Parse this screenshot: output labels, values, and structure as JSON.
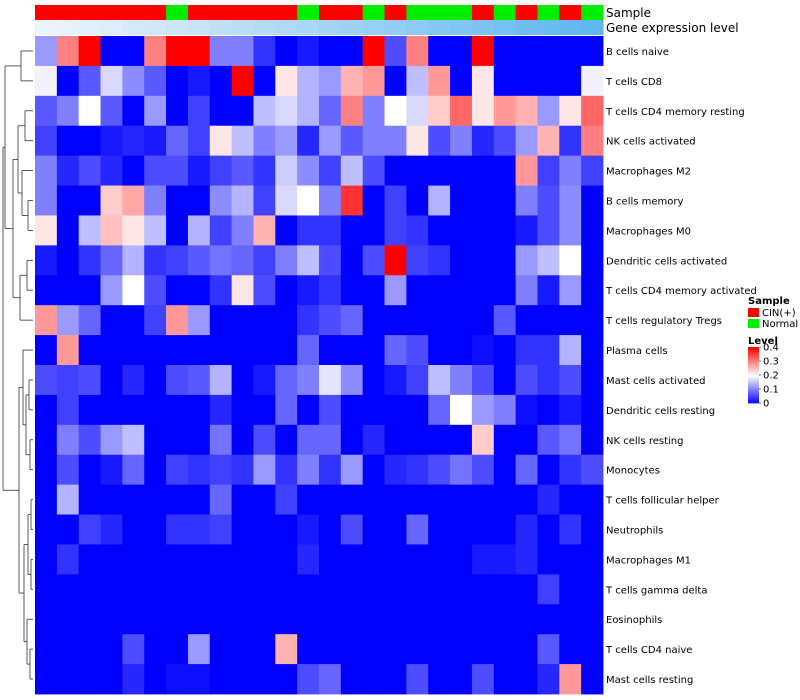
{
  "chart_data": {
    "type": "heatmap",
    "title": "",
    "annotation_tracks": [
      {
        "name": "Sample",
        "label": "Sample"
      },
      {
        "name": "Gene expression level",
        "label": "Gene expression level"
      }
    ],
    "sample_groups": [
      "C",
      "C",
      "C",
      "C",
      "C",
      "C",
      "N",
      "C",
      "C",
      "C",
      "C",
      "C",
      "N",
      "C",
      "C",
      "N",
      "C",
      "N",
      "N",
      "N",
      "C",
      "N",
      "C",
      "N",
      "C",
      "N"
    ],
    "group_colors": {
      "C": "#ff0000",
      "N": "#00ee00"
    },
    "expression_gradient": [
      "#eef4fb",
      "#5fb7f0"
    ],
    "rows": [
      "B cells naive",
      "T cells CD8",
      "T cells CD4 memory resting",
      "NK cells activated",
      "Macrophages M2",
      "B cells memory",
      "Macrophages M0",
      "Dendritic cells activated",
      "T cells CD4 memory activated",
      "T cells regulatory  Tregs",
      "Plasma cells",
      "Mast cells activated",
      "Dendritic cells resting",
      "NK cells resting",
      "Monocytes",
      "T cells follicular helper",
      "Neutrophils",
      "Macrophages M1",
      "T cells gamma delta",
      "Eosinophils",
      "T cells CD4 naive",
      "Mast cells resting"
    ],
    "values": [
      [
        0.12,
        0.3,
        0.4,
        0.0,
        0.0,
        0.3,
        0.4,
        0.4,
        0.1,
        0.1,
        0.04,
        0.0,
        0.02,
        0.0,
        0.0,
        0.4,
        0.06,
        0.3,
        0.0,
        0.0,
        0.4,
        0.0,
        0.0,
        0.0,
        0.0,
        0.0
      ],
      [
        0.19,
        0.0,
        0.07,
        0.17,
        0.11,
        0.07,
        0.0,
        0.02,
        0.0,
        0.4,
        0.0,
        0.22,
        0.14,
        0.12,
        0.26,
        0.28,
        0.0,
        0.15,
        0.28,
        0.0,
        0.22,
        0.0,
        0.0,
        0.0,
        0.0,
        0.19
      ],
      [
        0.07,
        0.1,
        0.2,
        0.07,
        0.0,
        0.12,
        0.0,
        0.05,
        0.0,
        0.0,
        0.15,
        0.17,
        0.14,
        0.08,
        0.3,
        0.1,
        0.2,
        0.17,
        0.24,
        0.32,
        0.22,
        0.28,
        0.26,
        0.12,
        0.22,
        0.32
      ],
      [
        0.05,
        0.0,
        0.0,
        0.02,
        0.03,
        0.02,
        0.08,
        0.05,
        0.22,
        0.15,
        0.1,
        0.12,
        0.03,
        0.12,
        0.07,
        0.1,
        0.1,
        0.22,
        0.06,
        0.1,
        0.03,
        0.06,
        0.12,
        0.26,
        0.04,
        0.3
      ],
      [
        0.1,
        0.03,
        0.06,
        0.03,
        0.0,
        0.06,
        0.06,
        0.02,
        0.05,
        0.07,
        0.04,
        0.16,
        0.11,
        0.05,
        0.15,
        0.06,
        0.0,
        0.0,
        0.0,
        0.0,
        0.0,
        0.0,
        0.28,
        0.05,
        0.1,
        0.05
      ],
      [
        0.1,
        0.0,
        0.0,
        0.24,
        0.27,
        0.1,
        0.0,
        0.0,
        0.11,
        0.14,
        0.05,
        0.17,
        0.2,
        0.1,
        0.36,
        0.0,
        0.05,
        0.0,
        0.14,
        0.0,
        0.0,
        0.0,
        0.1,
        0.06,
        0.11,
        0.0
      ],
      [
        0.22,
        0.0,
        0.15,
        0.25,
        0.22,
        0.15,
        0.0,
        0.14,
        0.05,
        0.1,
        0.26,
        0.0,
        0.04,
        0.04,
        0.0,
        0.0,
        0.05,
        0.04,
        0.0,
        0.0,
        0.0,
        0.0,
        0.02,
        0.06,
        0.11,
        0.0
      ],
      [
        0.02,
        0.0,
        0.04,
        0.08,
        0.14,
        0.04,
        0.05,
        0.07,
        0.09,
        0.08,
        0.05,
        0.1,
        0.15,
        0.06,
        0.0,
        0.06,
        0.4,
        0.05,
        0.04,
        0.0,
        0.0,
        0.0,
        0.12,
        0.15,
        0.2,
        0.0
      ],
      [
        0.0,
        0.0,
        0.0,
        0.12,
        0.2,
        0.06,
        0.0,
        0.0,
        0.04,
        0.22,
        0.06,
        0.0,
        0.02,
        0.04,
        0.0,
        0.0,
        0.12,
        0.0,
        0.0,
        0.0,
        0.0,
        0.0,
        0.1,
        0.02,
        0.12,
        0.0
      ],
      [
        0.28,
        0.12,
        0.08,
        0.0,
        0.0,
        0.05,
        0.28,
        0.12,
        0.0,
        0.0,
        0.0,
        0.0,
        0.04,
        0.06,
        0.08,
        0.0,
        0.0,
        0.0,
        0.0,
        0.0,
        0.0,
        0.07,
        0.0,
        0.0,
        0.0,
        0.0
      ],
      [
        0.0,
        0.28,
        0.0,
        0.0,
        0.0,
        0.0,
        0.0,
        0.0,
        0.0,
        0.0,
        0.0,
        0.0,
        0.08,
        0.0,
        0.0,
        0.0,
        0.08,
        0.06,
        0.0,
        0.0,
        0.01,
        0.0,
        0.04,
        0.04,
        0.14,
        0.0
      ],
      [
        0.06,
        0.05,
        0.06,
        0.0,
        0.03,
        0.0,
        0.06,
        0.07,
        0.14,
        0.0,
        0.02,
        0.08,
        0.1,
        0.18,
        0.11,
        0.0,
        0.02,
        0.05,
        0.15,
        0.1,
        0.06,
        0.0,
        0.06,
        0.04,
        0.06,
        0.0
      ],
      [
        0.0,
        0.05,
        0.0,
        0.0,
        0.0,
        0.0,
        0.0,
        0.0,
        0.03,
        0.0,
        0.0,
        0.08,
        0.0,
        0.06,
        0.0,
        0.0,
        0.0,
        0.0,
        0.08,
        0.2,
        0.12,
        0.1,
        0.01,
        0.0,
        0.02,
        0.0
      ],
      [
        0.0,
        0.1,
        0.06,
        0.12,
        0.15,
        0.0,
        0.0,
        0.0,
        0.09,
        0.0,
        0.06,
        0.0,
        0.08,
        0.08,
        0.0,
        0.03,
        0.0,
        0.0,
        0.0,
        0.0,
        0.24,
        0.0,
        0.0,
        0.07,
        0.09,
        0.0
      ],
      [
        0.0,
        0.06,
        0.0,
        0.02,
        0.08,
        0.0,
        0.05,
        0.04,
        0.05,
        0.04,
        0.12,
        0.04,
        0.1,
        0.04,
        0.12,
        0.0,
        0.03,
        0.04,
        0.06,
        0.09,
        0.06,
        0.0,
        0.08,
        0.0,
        0.04,
        0.06
      ],
      [
        0.0,
        0.14,
        0.0,
        0.0,
        0.0,
        0.0,
        0.0,
        0.0,
        0.08,
        0.0,
        0.0,
        0.05,
        0.0,
        0.0,
        0.0,
        0.0,
        0.0,
        0.0,
        0.0,
        0.0,
        0.0,
        0.0,
        0.0,
        0.03,
        0.0,
        0.0
      ],
      [
        0.0,
        0.0,
        0.05,
        0.03,
        0.0,
        0.0,
        0.04,
        0.04,
        0.05,
        0.0,
        0.0,
        0.0,
        0.02,
        0.0,
        0.06,
        0.0,
        0.0,
        0.08,
        0.0,
        0.0,
        0.0,
        0.0,
        0.03,
        0.0,
        0.04,
        0.0
      ],
      [
        0.0,
        0.04,
        0.0,
        0.0,
        0.0,
        0.0,
        0.0,
        0.0,
        0.0,
        0.0,
        0.0,
        0.0,
        0.03,
        0.0,
        0.0,
        0.0,
        0.0,
        0.0,
        0.0,
        0.0,
        0.02,
        0.02,
        0.03,
        0.0,
        0.0,
        0.0
      ],
      [
        0.0,
        0.0,
        0.0,
        0.0,
        0.0,
        0.0,
        0.0,
        0.0,
        0.0,
        0.0,
        0.0,
        0.0,
        0.0,
        0.0,
        0.0,
        0.0,
        0.0,
        0.0,
        0.0,
        0.0,
        0.0,
        0.0,
        0.0,
        0.05,
        0.0,
        0.0
      ],
      [
        0.0,
        0.0,
        0.0,
        0.0,
        0.0,
        0.0,
        0.0,
        0.0,
        0.0,
        0.0,
        0.0,
        0.0,
        0.0,
        0.0,
        0.0,
        0.0,
        0.0,
        0.0,
        0.0,
        0.0,
        0.0,
        0.0,
        0.0,
        0.0,
        0.0,
        0.0
      ],
      [
        0.0,
        0.0,
        0.0,
        0.0,
        0.06,
        0.0,
        0.0,
        0.12,
        0.0,
        0.0,
        0.0,
        0.26,
        0.0,
        0.0,
        0.0,
        0.0,
        0.0,
        0.0,
        0.0,
        0.0,
        0.0,
        0.0,
        0.0,
        0.07,
        0.0,
        0.0
      ],
      [
        0.0,
        0.0,
        0.0,
        0.0,
        0.03,
        0.0,
        0.01,
        0.01,
        0.0,
        0.0,
        0.0,
        0.0,
        0.06,
        0.08,
        0.0,
        0.0,
        0.0,
        0.06,
        0.0,
        0.0,
        0.06,
        0.0,
        0.0,
        0.03,
        0.28,
        0.0
      ]
    ],
    "color_scale": {
      "min": 0,
      "mid": 0.2,
      "max": 0.4,
      "colors": [
        "#0000ff",
        "#ffffff",
        "#ff0000"
      ]
    },
    "legend": {
      "sample_title": "Sample",
      "sample_entries": [
        {
          "label": "CIN(+)",
          "color": "#ff0000"
        },
        {
          "label": "Normal",
          "color": "#00ee00"
        }
      ],
      "level_title": "Level",
      "level_ticks": [
        "0.4",
        "0.3",
        "0.2",
        "0.1",
        "0"
      ],
      "level_tick_values": [
        0.4,
        0.3,
        0.2,
        0.1,
        0
      ]
    },
    "row_dendrogram": true
  }
}
